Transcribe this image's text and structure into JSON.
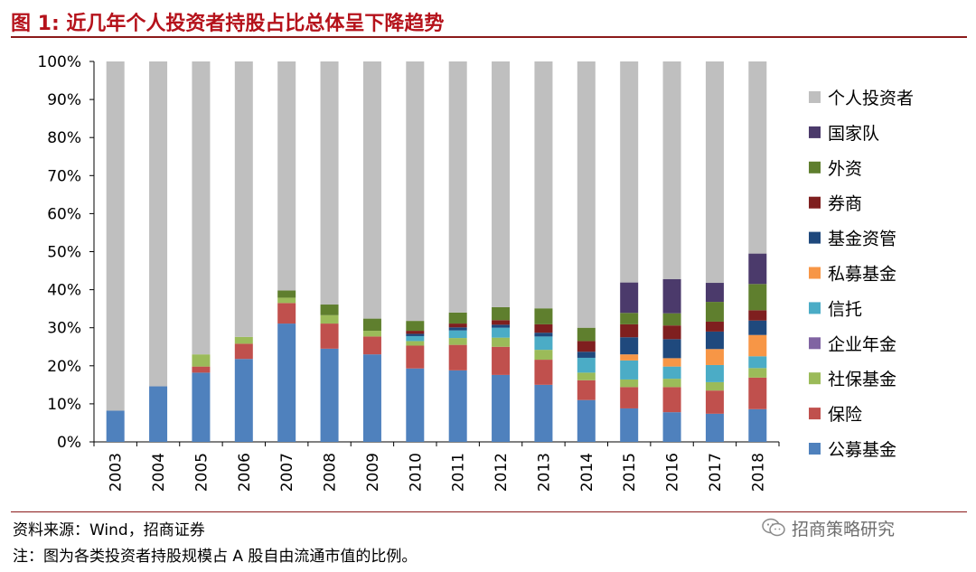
{
  "header": {
    "title": "图 1:  近几年个人投资者持股占比总体呈下降趋势"
  },
  "footer": {
    "source": "资料来源：Wind，招商证券",
    "note": "注：图为各类投资者持股规模占 A 股自由流通市值的比例。",
    "watermark": "招商策略研究"
  },
  "chart_data": {
    "type": "bar",
    "stacked": true,
    "categories": [
      "2003",
      "2004",
      "2005",
      "2006",
      "2007",
      "2008",
      "2009",
      "2010",
      "2011",
      "2012",
      "2013",
      "2014",
      "2015",
      "2016",
      "2017",
      "2018"
    ],
    "ylim": [
      0,
      100
    ],
    "yticks": [
      "0%",
      "10%",
      "20%",
      "30%",
      "40%",
      "50%",
      "60%",
      "70%",
      "80%",
      "90%",
      "100%"
    ],
    "xlabel": "",
    "ylabel": "",
    "grid": false,
    "legend_position": "right",
    "series": [
      {
        "name": "公募基金",
        "color": "#4f81bd",
        "values": [
          8.2,
          14.6,
          18.2,
          21.8,
          31.1,
          24.5,
          23.0,
          19.3,
          18.8,
          17.6,
          15.0,
          11.0,
          8.8,
          7.8,
          7.4,
          8.6
        ]
      },
      {
        "name": "保险",
        "color": "#c0504d",
        "values": [
          0,
          0,
          1.6,
          4.0,
          5.4,
          6.6,
          4.7,
          6.0,
          6.7,
          7.4,
          6.6,
          5.2,
          5.6,
          6.6,
          6.1,
          8.3
        ]
      },
      {
        "name": "社保基金",
        "color": "#9bbb59",
        "values": [
          0,
          0,
          3.2,
          1.8,
          1.4,
          2.2,
          1.5,
          1.2,
          1.8,
          2.4,
          2.6,
          2.0,
          2.0,
          2.2,
          2.2,
          2.5
        ]
      },
      {
        "name": "企业年金",
        "color": "#8064a2",
        "values": [
          0,
          0,
          0,
          0,
          0,
          0,
          0,
          0,
          0,
          0,
          0,
          0,
          0,
          0,
          0,
          0
        ]
      },
      {
        "name": "信托",
        "color": "#4bacc6",
        "values": [
          0,
          0,
          0,
          0,
          0,
          0,
          0,
          1.3,
          2.0,
          2.6,
          3.5,
          3.9,
          5.0,
          3.2,
          4.5,
          3.1
        ]
      },
      {
        "name": "私募基金",
        "color": "#f79646",
        "values": [
          0,
          0,
          0,
          0,
          0,
          0,
          0,
          0,
          0,
          0,
          0,
          0,
          1.6,
          2.2,
          4.2,
          5.6
        ]
      },
      {
        "name": "基金资管",
        "color": "#1f497d",
        "values": [
          0,
          0,
          0,
          0,
          0,
          0,
          0,
          0.6,
          0.8,
          0.8,
          1.0,
          1.6,
          4.5,
          5.0,
          4.6,
          3.8
        ]
      },
      {
        "name": "券商",
        "color": "#7f1f1f",
        "values": [
          0,
          0,
          0,
          0,
          0,
          0,
          0,
          0.8,
          1.0,
          1.2,
          2.2,
          2.8,
          3.4,
          3.6,
          2.6,
          2.7
        ]
      },
      {
        "name": "外资",
        "color": "#5f7f2e",
        "values": [
          0,
          0,
          0,
          0,
          1.9,
          2.8,
          3.2,
          2.6,
          2.9,
          3.4,
          4.2,
          3.5,
          3.0,
          3.2,
          5.2,
          6.9
        ]
      },
      {
        "name": "国家队",
        "color": "#4b3a6b",
        "values": [
          0,
          0,
          0,
          0,
          0,
          0,
          0,
          0,
          0,
          0,
          0,
          0,
          8.0,
          9.0,
          5.0,
          8.0
        ]
      },
      {
        "name": "个人投资者",
        "color": "#bfbfbf",
        "values": [
          91.8,
          85.4,
          77.0,
          72.4,
          60.2,
          63.9,
          67.6,
          68.2,
          66.0,
          64.6,
          64.9,
          70.0,
          58.1,
          57.2,
          58.2,
          50.5
        ]
      }
    ],
    "legend_order": [
      "个人投资者",
      "国家队",
      "外资",
      "券商",
      "基金资管",
      "私募基金",
      "信托",
      "企业年金",
      "社保基金",
      "保险",
      "公募基金"
    ]
  }
}
